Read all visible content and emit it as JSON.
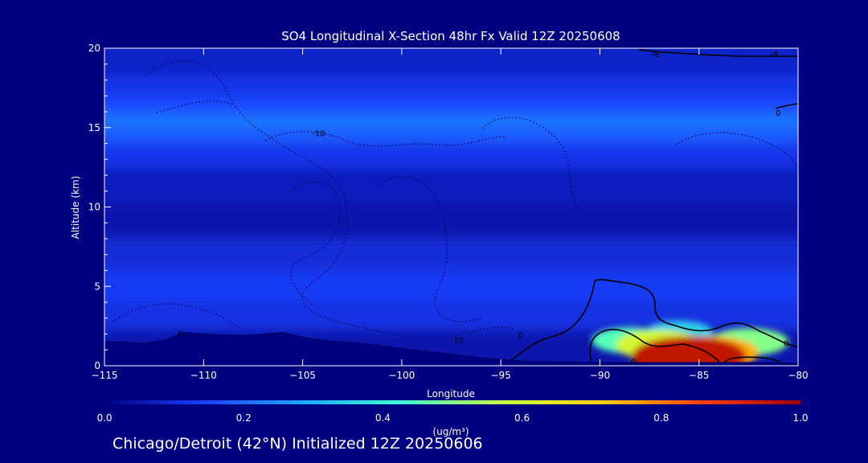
{
  "chart_data": {
    "type": "heatmap",
    "title": "SO4 Longitudinal X-Section 48hr  Fx Valid 12Z 20250608",
    "subtitle": "Chicago/Detroit (42°N) Initialized 12Z 20250606",
    "xlabel": "Longitude",
    "ylabel": "Altitude (km)",
    "xlim": [
      -115,
      -80
    ],
    "ylim": [
      0,
      20
    ],
    "xticks": [
      "-115",
      "-110",
      "-105",
      "-100",
      "-95",
      "-90",
      "-85",
      "-80"
    ],
    "yticks": [
      "0",
      "5",
      "10",
      "15",
      "20"
    ],
    "colorbar": {
      "label": "(ug/m³)",
      "ticks": [
        "0.0",
        "0.2",
        "0.4",
        "0.6",
        "0.8",
        "1.0"
      ],
      "range": [
        0,
        1
      ],
      "colors": [
        "#000080",
        "#1a40ff",
        "#1fa8ff",
        "#40ffd0",
        "#c8ff40",
        "#ffd000",
        "#ff4000",
        "#a00000"
      ]
    },
    "contour_labels": [
      {
        "text": "-10",
        "x": -104.2,
        "y": 14.6
      },
      {
        "text": "-10",
        "x": -97.2,
        "y": 1.6
      },
      {
        "text": "0",
        "x": -111.2,
        "y": 2.0
      },
      {
        "text": "0",
        "x": -94.0,
        "y": 1.9
      },
      {
        "text": "0",
        "x": -80.6,
        "y": 1.4
      },
      {
        "text": "0",
        "x": -88.3,
        "y": 0.25
      },
      {
        "text": "0",
        "x": -81.0,
        "y": 15.9
      },
      {
        "text": "-8",
        "x": -87.2,
        "y": 19.6
      },
      {
        "text": "-8",
        "x": -81.2,
        "y": 19.6
      }
    ],
    "concentration_bands": [
      {
        "y": 19.0,
        "value": 0.08
      },
      {
        "y": 17.5,
        "value": 0.12
      },
      {
        "y": 16.3,
        "value": 0.16
      },
      {
        "y": 15.4,
        "value": 0.22
      },
      {
        "y": 14.6,
        "value": 0.18
      },
      {
        "y": 13.4,
        "value": 0.12
      },
      {
        "y": 11.5,
        "value": 0.07
      },
      {
        "y": 9.0,
        "value": 0.05
      },
      {
        "y": 7.0,
        "value": 0.1
      },
      {
        "y": 5.0,
        "value": 0.13
      },
      {
        "y": 3.0,
        "value": 0.11
      },
      {
        "y": 1.5,
        "value": 0.05
      }
    ],
    "hotspots": [
      {
        "x": -85.5,
        "y": 0.6,
        "value": 0.95
      },
      {
        "x": -84.5,
        "y": 0.8,
        "value": 0.75
      },
      {
        "x": -87.0,
        "y": 1.3,
        "value": 0.6
      },
      {
        "x": -88.5,
        "y": 1.6,
        "value": 0.45
      },
      {
        "x": -82.5,
        "y": 1.5,
        "value": 0.5
      },
      {
        "x": -86.0,
        "y": 2.1,
        "value": 0.35
      }
    ],
    "terrain": [
      [
        -115,
        1.5
      ],
      [
        -114,
        1.5
      ],
      [
        -113,
        1.4
      ],
      [
        -112,
        1.6
      ],
      [
        -111,
        2.1
      ],
      [
        -110,
        2.0
      ],
      [
        -108,
        1.9
      ],
      [
        -107,
        2.0
      ],
      [
        -106,
        2.1
      ],
      [
        -105,
        1.8
      ],
      [
        -104,
        1.6
      ],
      [
        -102,
        1.4
      ],
      [
        -100,
        1.1
      ],
      [
        -98,
        0.8
      ],
      [
        -96,
        0.5
      ],
      [
        -94,
        0.3
      ],
      [
        -92,
        0.25
      ],
      [
        -90,
        0.2
      ],
      [
        -88,
        0.2
      ],
      [
        -86,
        0.2
      ],
      [
        -84,
        0.2
      ],
      [
        -82,
        0.2
      ],
      [
        -80,
        0.15
      ]
    ]
  }
}
